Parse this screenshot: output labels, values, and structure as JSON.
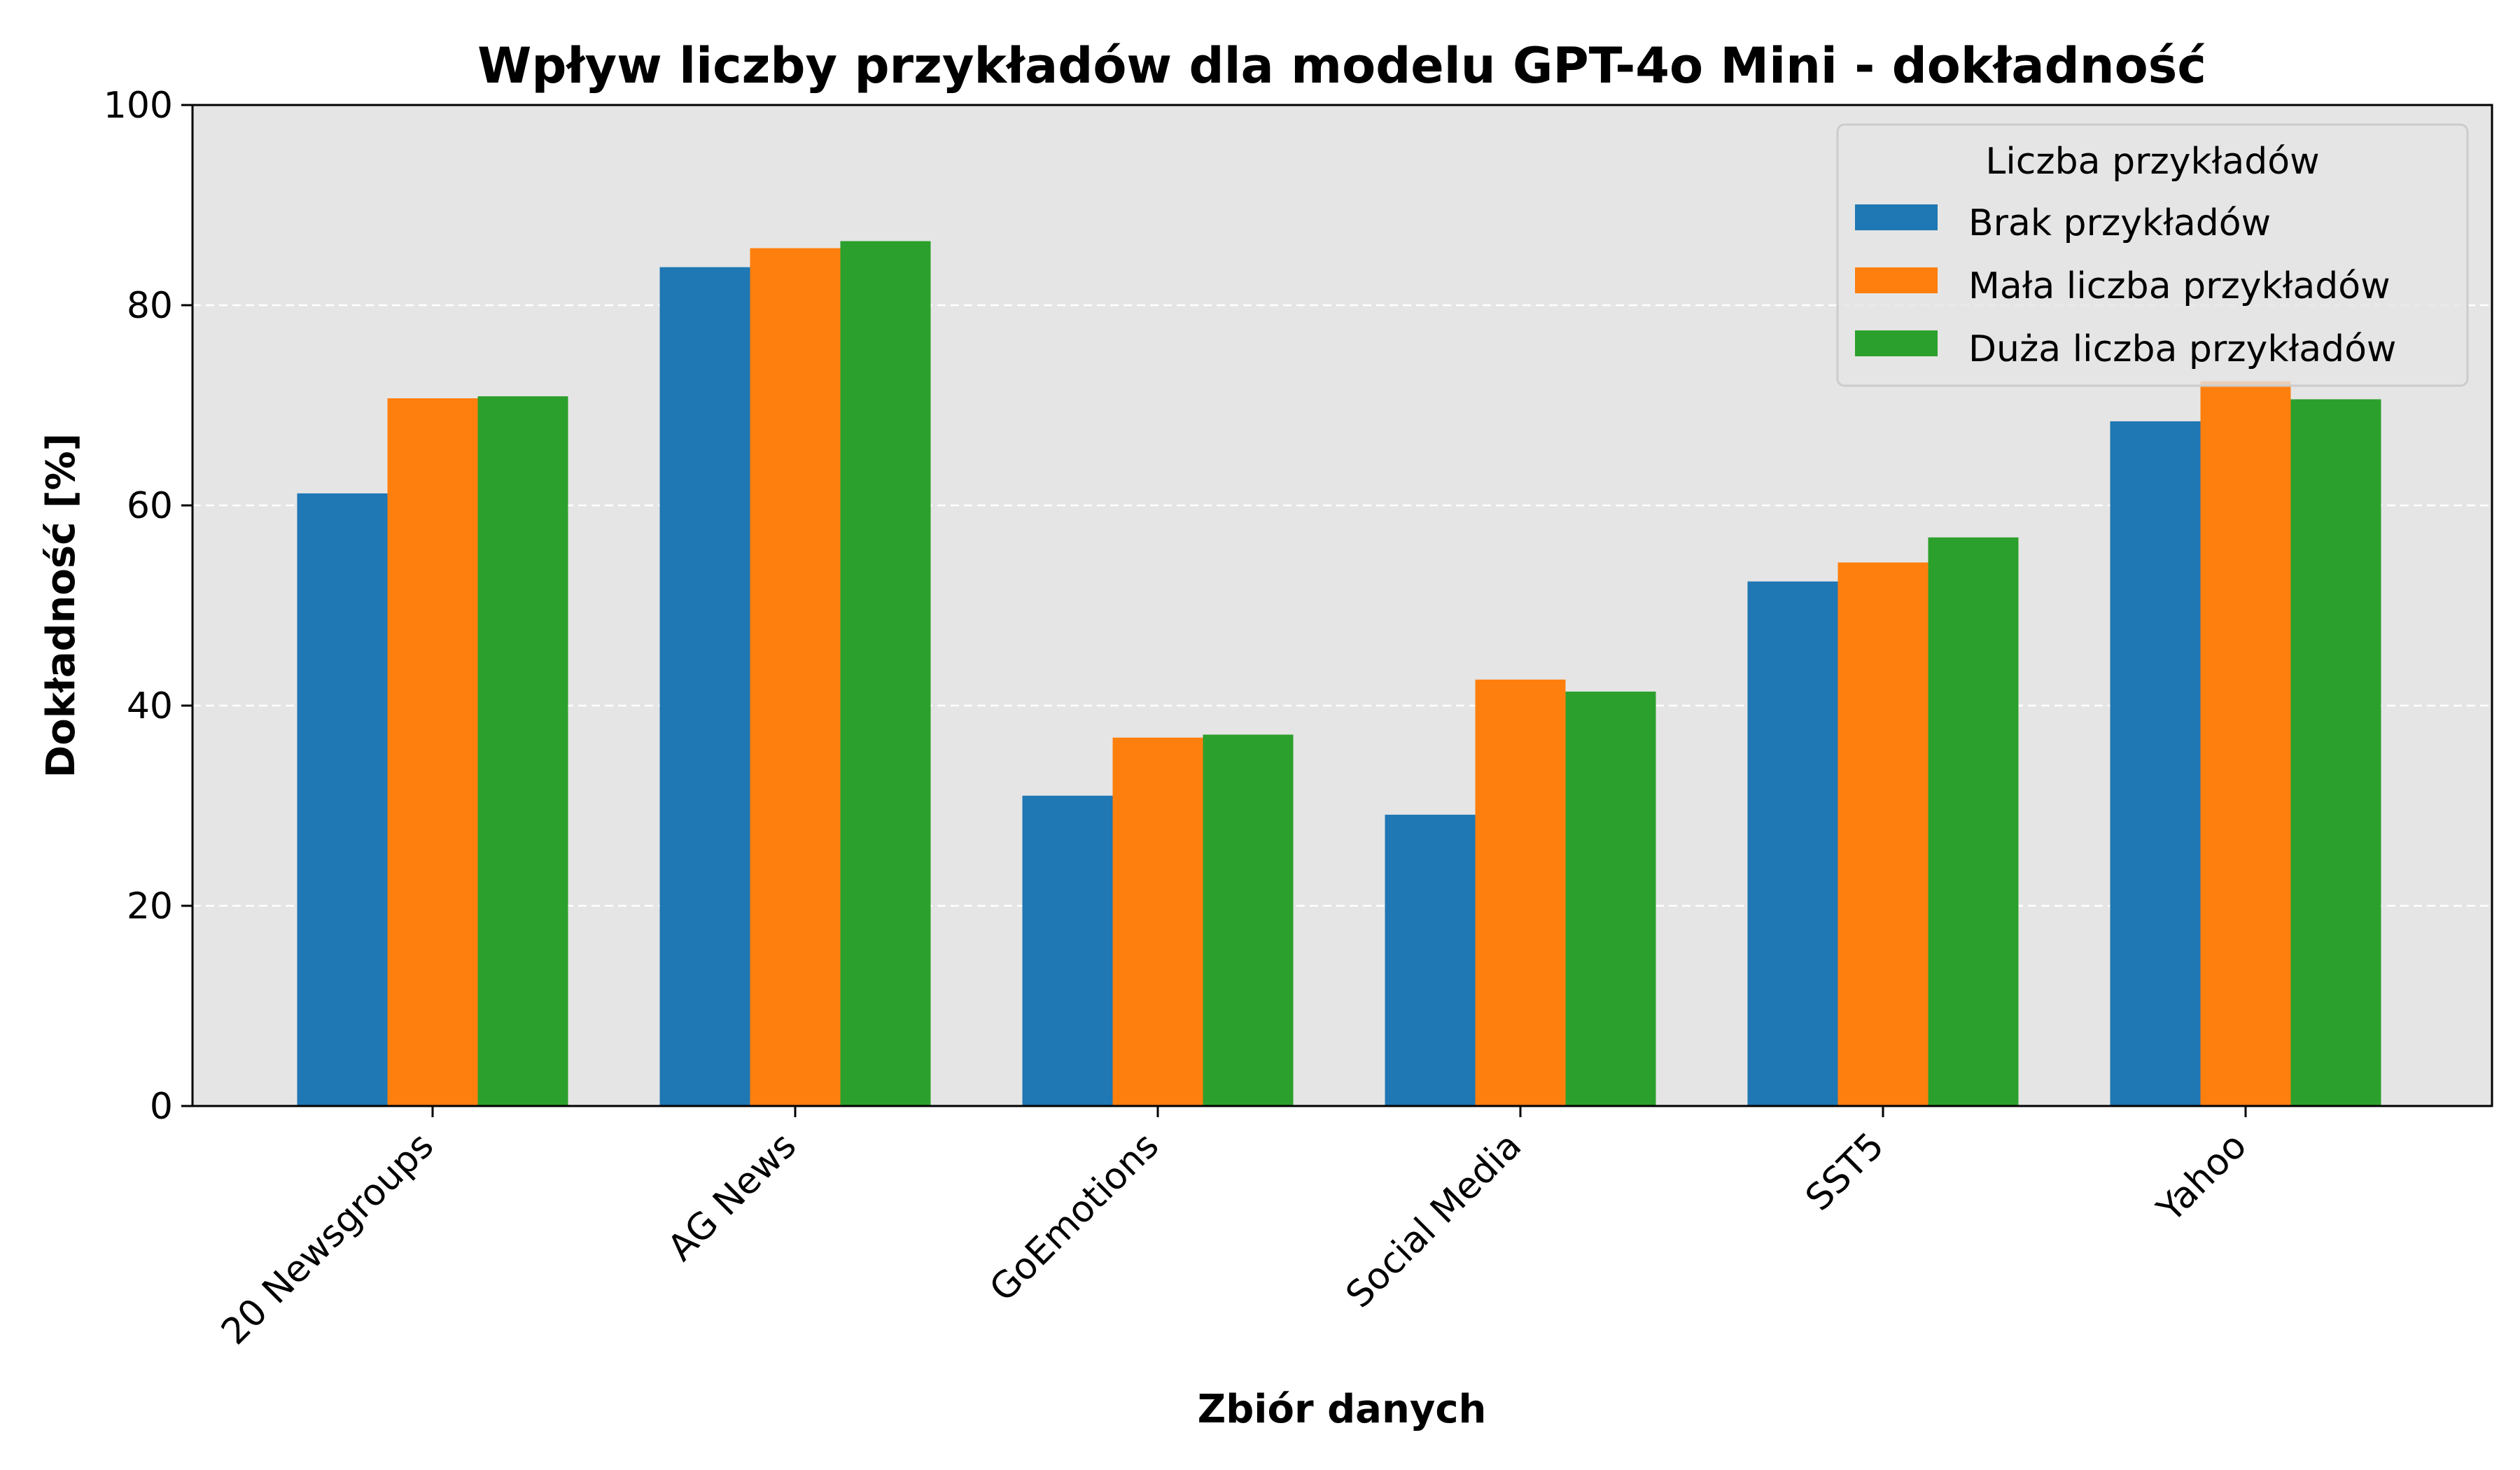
{
  "chart_data": {
    "type": "bar",
    "title": "Wpływ liczby przykładów  dla modelu GPT-4o Mini - dokładność",
    "xlabel": "Zbiór danych",
    "ylabel": "Dokładność [%]",
    "ylim": [
      0,
      100
    ],
    "yticks": [
      0,
      20,
      40,
      60,
      80,
      100
    ],
    "grid": "horizontal-dashed",
    "legend": {
      "title": "Liczba przykładów",
      "placement": "top-right"
    },
    "categories": [
      "20 Newsgroups",
      "AG News",
      "GoEmotions",
      "Social Media",
      "SST5",
      "Yahoo"
    ],
    "series": [
      {
        "name": "Brak przykładów",
        "color": "#1f77b4",
        "values": [
          61.2,
          83.8,
          31.0,
          29.1,
          52.4,
          68.4
        ]
      },
      {
        "name": "Mała liczba przykładów",
        "color": "#ff7f0e",
        "values": [
          70.7,
          85.7,
          36.8,
          42.6,
          54.3,
          72.4
        ]
      },
      {
        "name": "Duża liczba przykładów",
        "color": "#2ca02c",
        "values": [
          70.9,
          86.4,
          37.1,
          41.4,
          56.8,
          70.6
        ]
      }
    ]
  }
}
